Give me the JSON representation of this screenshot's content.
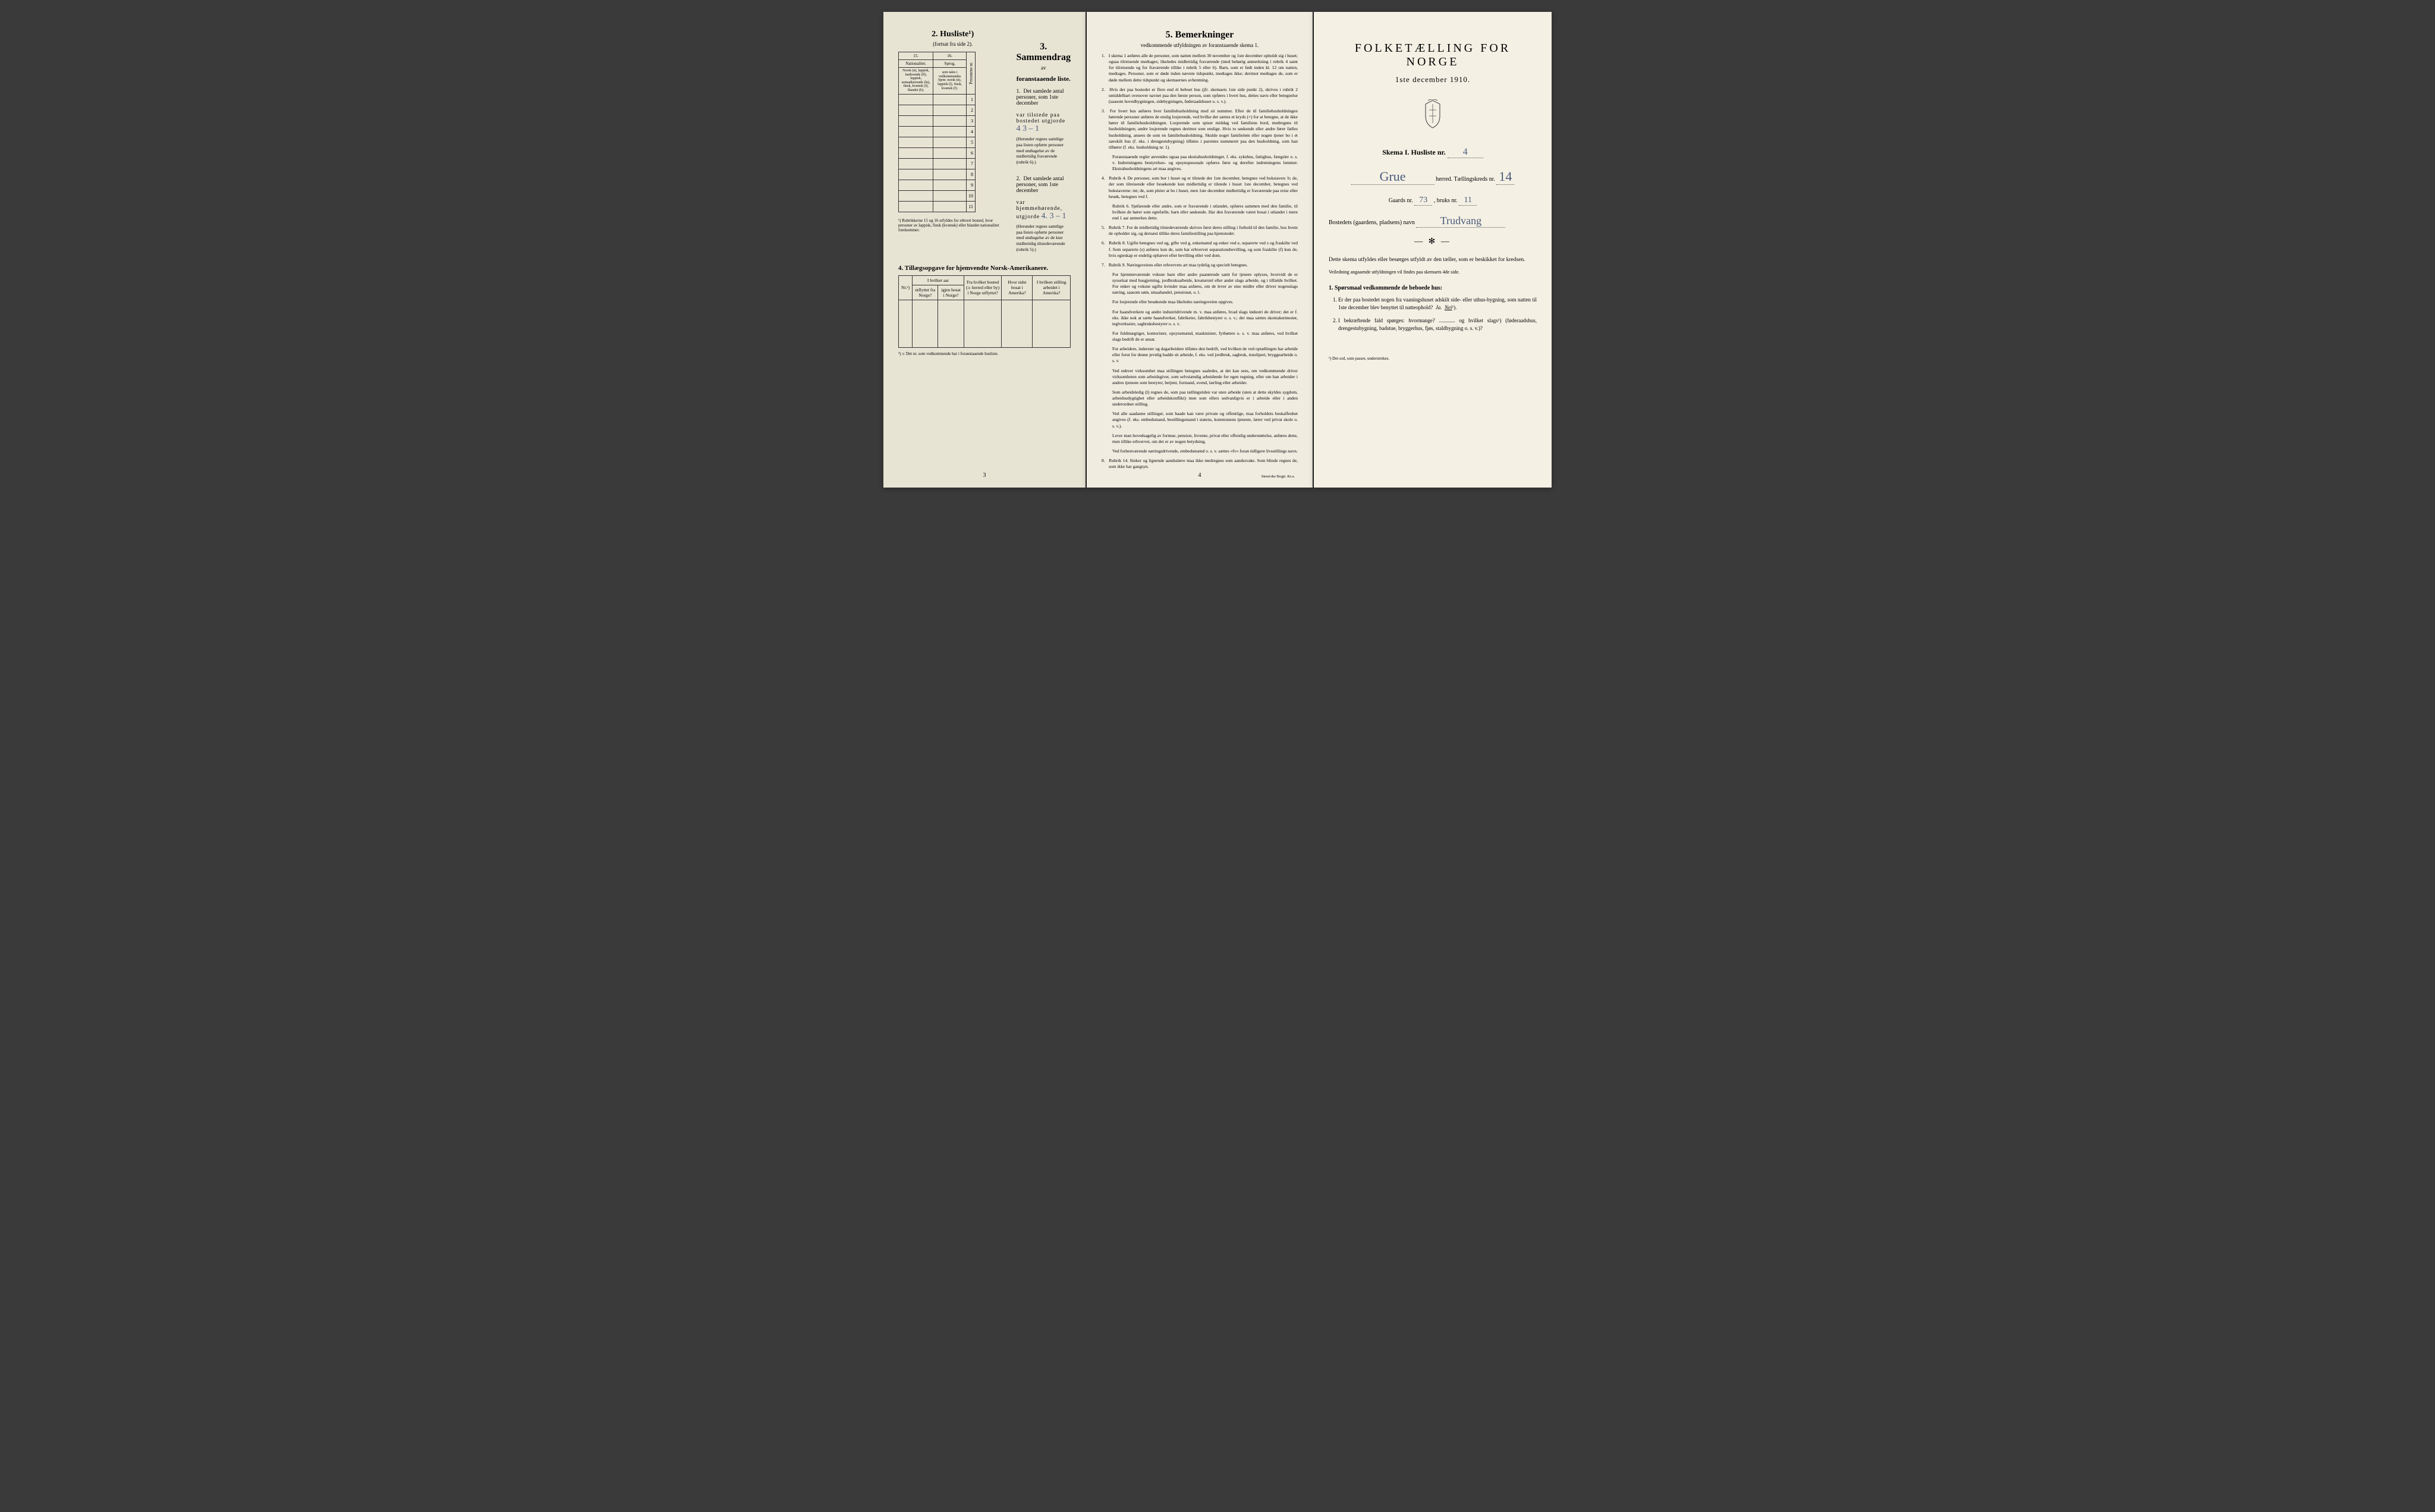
{
  "page1": {
    "husliste_title": "2. Husliste¹)",
    "husliste_sub": "(fortsat fra side 2).",
    "cols": {
      "c15": "15.",
      "c16": "16."
    },
    "col15_head": "Nationalitet.",
    "col15_body": "Norsk (n), lappisk, fastboende (lf), lappisk, nomadiserende (ln), finsk, kvænsk (f), blandet (b).",
    "col16_head": "Sprog,",
    "col16_body": "som tales i vedkommendes hjem: norsk (n), lappisk (l), finsk, kvænsk (f).",
    "pers_nr": "Personens nr.",
    "row_nums": [
      "1",
      "2",
      "3",
      "4",
      "5",
      "6",
      "7",
      "8",
      "9",
      "10",
      "11"
    ],
    "col_footnote": "¹) Rubrikkerne 15 og 16 utfyldes for ethvert bosted, hvor personer av lappisk, finsk (kvænsk) eller blandet nationalitet forekommer.",
    "sec3_title": "3. Sammendrag",
    "sec3_sub1": "av",
    "sec3_sub2": "foranstaaende liste.",
    "item1_text": "Det samlede antal personer, som 1ste december",
    "item1_line2": "var tilstede paa bostedet utgjorde",
    "item1_hand": "4  3 – 1",
    "item1_note": "(Herunder regnes samtlige paa listen opførte personer med undtagelse av de midlertidig fraværende (rubrik 6).)",
    "item2_text": "Det samlede antal personer, som 1ste december",
    "item2_line2": "var hjemmehørende, utgjorde",
    "item2_hand": "4.  3 – 1",
    "item2_note": "(Herunder regnes samtlige paa listen opførte personer med undtagelse av de kun midlertidig tilstedeværende (rubrik 5).)",
    "sec4_title": "4. Tillægsopgave for hjemvendte Norsk-Amerikanere.",
    "amer_head": {
      "nr": "Nr.²)",
      "ut_top": "I hvilket aar",
      "ut": "utflyttet fra Norge?",
      "igjen": "igjen bosat i Norge?",
      "fra": "Fra hvilket bosted (ɔ: herred eller by) i Norge utflyttet?",
      "hvor": "Hvor sidst bosat i Amerika?",
      "stilling": "I hvilken stilling arbeidet i Amerika?"
    },
    "sec4_foot": "²) ɔ: Det nr. som vedkommende har i foranstaaende husliste.",
    "pagenum": "3"
  },
  "page2": {
    "title": "5. Bemerkninger",
    "sub": "vedkommende utfyldningen av foranstaaende skema 1.",
    "items": [
      "I skema 1 anføres alle de personer, som natten mellem 30 november og 1ste december opholdt sig i huset; ogsaa tilreisende medtages; likeledes midlertidig fraværende (med behørig anmerkning i rubrik 4 samt for tilreisende og for fraværende tillike i rubrik 5 eller 6). Barn, som er født inden kl. 12 om natten, medtages. Personer, som er døde inden nævnte tidspunkt, medtages ikke; derimot medtages de, som er døde mellem dette tidspunkt og skemaernes avhentning.",
      "Hvis der paa bostedet er flere end ét beboet hus (jfr. skemaets 1ste side punkt 2), skrives i rubrik 2 umiddelbart ovenover navnet paa den første person, som opføres i hvert hus, dettes navn eller betegnelse (saasom hovedbygningen, sidebygningen, føderaadshuset o. s. v.).",
      "For hvert hus anføres hver familiehusholdning med sit nummer. Efter de til familiehusholdningen hørende personer anføres de enslig losjerende, ved hvilke der sættes et kryds (×) for at betegne, at de ikke hører til familiehusholdningen. Losjerende som spiser middag ved familiens bord, medregnes til husholdningen; andre losjerende regnes derimot som enslige. Hvis to søskende eller andre fører fælles husholdning, ansees de som en familiehusholdning. Skulde noget familielem eller nogen tjener bo i et særskilt hus (f. eks. i drengestubygning) tilføies i parentes nummeret paa den husholdning, som han tilhører (f. eks. husholdning nr. 1).",
      "Rubrik 4. De personer, som bor i huset og er tilstede der 1ste december, betegnes ved bokstaven: b; de, der som tilreisende eller besøkende kun midlertidig er tilstede i huset 1ste december, betegnes ved bokstaverne: mt; de, som pleier at bo i huset, men 1ste december midlertidig er fraværende paa reise eller besøk, betegnes ved f.",
      "Rubrik 7. For de midlertidig tilstedeværende skrives først deres stilling i forhold til den familie, hos hvem de opholder sig, og dernæst tillike deres familiestilling paa hjemstedet.",
      "Rubrik 8. Ugifte betegnes ved ug, gifte ved g, enkemænd og enker ved e, separerte ved s og fraskilte ved f. Som separerte (s) anføres kun de, som har erhvervet separationsbevilling, og som fraskilte (f) kun de, hvis egteskap er endelig ophævet efter bevilling eller ved dom.",
      "Rubrik 9. Næringsveiens eller erhvervets art maa tydelig og specielt betegnes.",
      "Rubrik 14. Sinker og lignende aandssløve maa ikke medregnes som aandssvake. Som blinde regnes de, som ikke har gangsyn."
    ],
    "sub3a": "Foranstaaende regler anvendes ogsaa paa ekstrahusholdninger, f. eks. sykehus, fattighus, fængsler o. s. v. Indretningens bestyrelses- og opsynspesonale opføres først og derefter indretningens lemmer. Ekstrahusholdningens art maa angives.",
    "sub4a": "Rubrik 6. Sjøfarende eller andre, som er fraværende i utlandet, opføres sammen med den familie, til hvilken de hører som egtefælle, barn eller søskende. Har den fraværende været bosat i utlandet i mere end 1 aar anmerkes dette.",
    "sub7": [
      "For hjemmeværende voksne barn eller andre paarørende samt for tjenere oplyses, hvorvidt de er sysselsat med husgjerning, jordbruksarbeide, kreaturstel eller andet slags arbeide, og i tilfælde hvilket. For enker og voksne ugifte kvinder maa anføres, om de lever av sine midler eller driver nogenslags næring, saasom søm, smaahandel, pensionat, o. l.",
      "For losjerende eller besøkende maa likeledes næringsveien opgives.",
      "For haandverkere og andre industridrivende m. v. maa anføres, hvad slags industri de driver; det er f. eks. ikke nok at sætte haandverker, fabrikeier, fabrikbestyrer o. s. v.; der maa sættes skomakermester, teglverkseier, sagbruksbestyrer o. s. v.",
      "For fuldmægtiger, kontorister, opsynsmænd, maskinister, fyrbøtere o. s. v. maa anføres, ved hvilket slags bedrift de er ansat.",
      "For arbeidere, inderster og dagarbeidere tilføies den bedrift, ved hvilken de ved optællingen har arbeide eller forut for denne jevnlig hadde sit arbeide, f. eks. ved jordbruk, sagbruk, træsliperi, bryggearbeide o. s. v.",
      "Ved enhver virksomhet maa stillingen betegnes saaledes, at det kan sees, om vedkommende driver virksomheten som arbeidsgiver, som selvstændig arbeidende for egen regning, eller om han arbeider i andres tjeneste som bestyrer, betjent, formand, svend, lærling eller arbeider.",
      "Som arbeidsledig (l) regnes de, som paa tællingstiden var uten arbeide (uten at dette skyldes sygdom, arbeidsudygtighet eller arbeidskonflikt) men som ellers sedvanligvis er i arbeide eller i anden underordnet stilling.",
      "Ved alle saadanne stillinger, som baade kan være private og offentlige, maa forholdets beskaffenhet angives (f. eks. embedsmand, bestillingsmand i statens, kommunens tjeneste, lærer ved privat skole o. s. v.).",
      "Lever man hovedsagelig av formue, pension, livrente, privat eller offentlig understøttelse, anføres dette, men tillike erhvervet, om det er av nogen betydning.",
      "Ved forhenværende næringsdrivende, embedsmænd o. s. v. sættes «fv» foran tidligere livsstillings navn."
    ],
    "pagenum": "4",
    "imprint": "Steen'ske Bogtr. Kr.a."
  },
  "page3": {
    "title": "FOLKETÆLLING FOR NORGE",
    "date": "1ste december 1910.",
    "skema_label": "Skema I.  Husliste nr.",
    "skema_hand": "4",
    "herred_hand": "Grue",
    "herred_label": "herred.  Tællingskreds nr.",
    "kreds_hand": "14",
    "gaards_label": "Gaards nr.",
    "gaards_hand": "73",
    "bruks_label": ", bruks nr.",
    "bruks_hand": "11",
    "bosted_label": "Bostedets (gaardens, pladsens) navn",
    "bosted_hand": "Trudvang",
    "body1": "Dette skema utfyldes eller besørges utfyldt av den tæller, som er beskikket for kredsen.",
    "body2": "Veiledning angaaende utfyldningen vil findes paa skemaets 4de side.",
    "q_title": "1. Spørsmaal vedkommende de beboede hus:",
    "q1": "Er der paa bostedet nogen fra vaaningshuset adskilt side- eller uthus-bygning, som natten til 1ste december blev benyttet til natteophold?",
    "ja": "Ja.",
    "nei": "Nei",
    "nei_sup": "¹).",
    "q2": "I bekræftende fald spørges: hvormange? ............ og hvilket slags¹) (føderaadshus, drengestubygning, badstue, bryggerhus, fjøs, staldbygning o. s. v.)?",
    "foot": "¹) Det ord, som passer, understrekes."
  }
}
